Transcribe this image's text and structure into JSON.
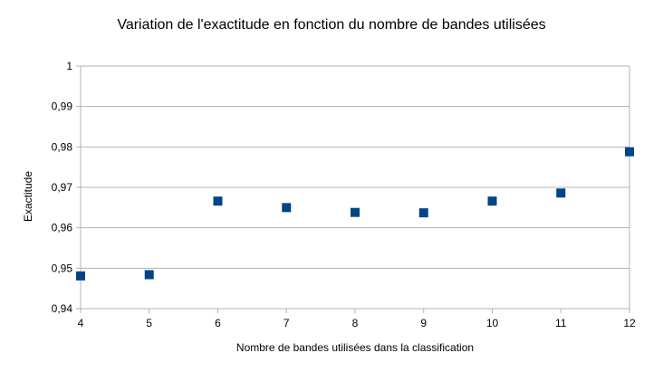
{
  "chart_data": {
    "type": "scatter",
    "title": "Variation de l'exactitude en fonction du nombre de bandes utilisées",
    "xlabel": "Nombre de bandes utilisées dans la classification",
    "ylabel": "Exactitude",
    "xlim": [
      4,
      12
    ],
    "ylim": [
      0.94,
      1
    ],
    "x_ticks": [
      4,
      5,
      6,
      7,
      8,
      9,
      10,
      11,
      12
    ],
    "y_ticks": [
      0.94,
      0.95,
      0.96,
      0.97,
      0.98,
      0.99,
      1
    ],
    "y_tick_labels": [
      "0,94",
      "0,95",
      "0,96",
      "0,97",
      "0,98",
      "0,99",
      "1"
    ],
    "grid": "horizontal",
    "legend": "none",
    "series": [
      {
        "x": [
          4,
          5,
          6,
          7,
          8,
          9,
          10,
          11,
          12
        ],
        "y": [
          0.9481,
          0.9484,
          0.9666,
          0.965,
          0.9638,
          0.9637,
          0.9666,
          0.9686,
          0.9788
        ],
        "color": "#004586"
      }
    ]
  }
}
